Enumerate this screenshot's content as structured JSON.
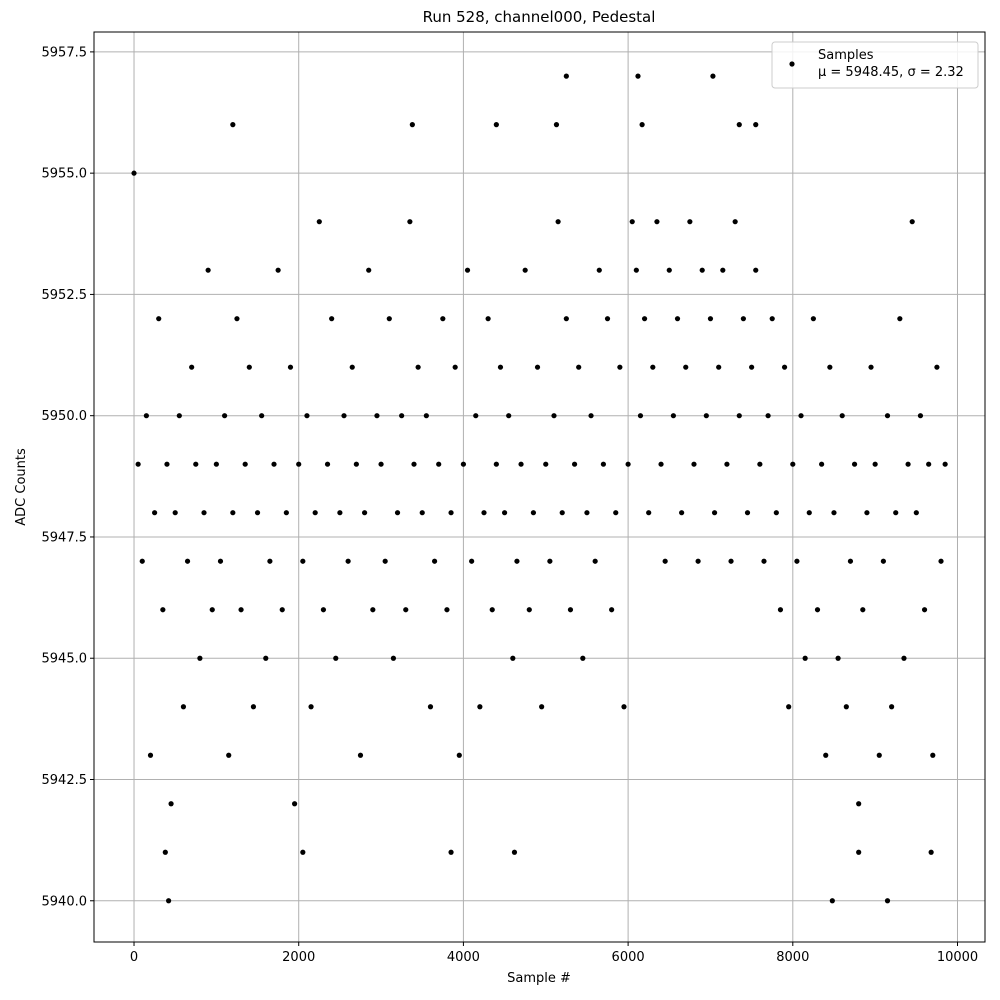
{
  "chart_data": {
    "type": "scatter",
    "title": "Run 528, channel000, Pedestal",
    "x_label": "Sample #",
    "y_label": "ADC Counts",
    "xlim": [
      -486,
      10334
    ],
    "ylim": [
      5939.15,
      5957.91
    ],
    "xticks": [
      0,
      2000,
      4000,
      6000,
      8000,
      10000
    ],
    "yticks": [
      {
        "value": 5940,
        "label": "5940.0"
      },
      5942.5,
      {
        "value": 5945,
        "label": "5945.0"
      },
      5947.5,
      {
        "value": 5950,
        "label": "5950.0"
      },
      5952.5,
      {
        "value": 5955,
        "label": "5955.0"
      },
      5957.5
    ],
    "grid": true,
    "legend": "upper right",
    "annotation": "μ = 5948.45, σ = 2.32",
    "series": [
      {
        "name": "Samples",
        "color": "#000000",
        "x": [
          0,
          50,
          100,
          150,
          200,
          250,
          300,
          350,
          400,
          450,
          500,
          550,
          600,
          650,
          700,
          750,
          800,
          850,
          900,
          950,
          1000,
          1050,
          1100,
          1150,
          1200,
          1250,
          1300,
          1350,
          1400,
          1450,
          1500,
          1550,
          1600,
          1650,
          1700,
          1750,
          1800,
          1850,
          1900,
          1950,
          2000,
          2050,
          2100,
          2150,
          2200,
          2250,
          2300,
          2350,
          2400,
          2450,
          2500,
          2550,
          2600,
          2650,
          2700,
          2750,
          2800,
          2850,
          2900,
          2950,
          3000,
          3050,
          3100,
          3150,
          3200,
          3250,
          3300,
          3350,
          3400,
          3450,
          3500,
          3550,
          3600,
          3650,
          3700,
          3750,
          3800,
          3850,
          3900,
          3950,
          4000,
          4050,
          4100,
          4150,
          4200,
          4250,
          4300,
          4350,
          4400,
          4450,
          4500,
          4550,
          4600,
          4650,
          4700,
          4750,
          4800,
          4850,
          4900,
          4950,
          5000,
          5050,
          5100,
          5150,
          5200,
          5250,
          5300,
          5350,
          5400,
          5450,
          5500,
          5550,
          5600,
          5650,
          5700,
          5750,
          5800,
          5850,
          5900,
          5950,
          6000,
          6050,
          6100,
          6150,
          6200,
          6250,
          6300,
          6350,
          6400,
          6450,
          6500,
          6550,
          6600,
          6650,
          6700,
          6750,
          6800,
          6850,
          6900,
          6950,
          7000,
          7050,
          7100,
          7150,
          7200,
          7250,
          7300,
          7350,
          7400,
          7450,
          7500,
          7550,
          7600,
          7650,
          7700,
          7750,
          7800,
          7850,
          7900,
          7950,
          8000,
          8050,
          8100,
          8150,
          8200,
          8250,
          8300,
          8350,
          8400,
          8450,
          8500,
          8550,
          8600,
          8650,
          8700,
          8750,
          8800,
          8850,
          8900,
          8950,
          9000,
          9050,
          9100,
          9150,
          9200,
          9250,
          9300,
          9350,
          9400,
          9450,
          9500,
          9550,
          9600,
          9650,
          9700,
          9750,
          9800,
          9850,
          1200,
          3380,
          4400,
          5130,
          5250,
          6120,
          7030,
          6170,
          7350,
          7550,
          420,
          8480,
          9150,
          380,
          2050,
          3850,
          4620,
          8800,
          9680
        ],
        "values": [
          5955,
          5949,
          5947,
          5950,
          5943,
          5948,
          5952,
          5946,
          5949,
          5942,
          5948,
          5950,
          5944,
          5947,
          5951,
          5949,
          5945,
          5948,
          5953,
          5946,
          5949,
          5947,
          5950,
          5943,
          5948,
          5952,
          5946,
          5949,
          5951,
          5944,
          5948,
          5950,
          5945,
          5947,
          5949,
          5953,
          5946,
          5948,
          5951,
          5942,
          5949,
          5947,
          5950,
          5944,
          5948,
          5954,
          5946,
          5949,
          5952,
          5945,
          5948,
          5950,
          5947,
          5951,
          5949,
          5943,
          5948,
          5953,
          5946,
          5950,
          5949,
          5947,
          5952,
          5945,
          5948,
          5950,
          5946,
          5954,
          5949,
          5951,
          5948,
          5950,
          5944,
          5947,
          5949,
          5952,
          5946,
          5948,
          5951,
          5943,
          5949,
          5953,
          5947,
          5950,
          5944,
          5948,
          5952,
          5946,
          5949,
          5951,
          5948,
          5950,
          5945,
          5947,
          5949,
          5953,
          5946,
          5948,
          5951,
          5944,
          5949,
          5947,
          5950,
          5954,
          5948,
          5952,
          5946,
          5949,
          5951,
          5945,
          5948,
          5950,
          5947,
          5953,
          5949,
          5952,
          5946,
          5948,
          5951,
          5944,
          5949,
          5954,
          5953,
          5950,
          5952,
          5948,
          5951,
          5954,
          5949,
          5947,
          5953,
          5950,
          5952,
          5948,
          5951,
          5954,
          5949,
          5947,
          5953,
          5950,
          5952,
          5948,
          5951,
          5953,
          5949,
          5947,
          5954,
          5950,
          5952,
          5948,
          5951,
          5953,
          5949,
          5947,
          5950,
          5952,
          5948,
          5946,
          5951,
          5944,
          5949,
          5947,
          5950,
          5945,
          5948,
          5952,
          5946,
          5949,
          5943,
          5951,
          5948,
          5945,
          5950,
          5944,
          5947,
          5949,
          5942,
          5946,
          5948,
          5951,
          5949,
          5943,
          5947,
          5950,
          5944,
          5948,
          5952,
          5945,
          5949,
          5954,
          5948,
          5950,
          5946,
          5949,
          5943,
          5951,
          5947,
          5949,
          5956,
          5956,
          5956,
          5956,
          5957,
          5957,
          5957,
          5956,
          5956,
          5956,
          5940,
          5940,
          5940,
          5941,
          5941,
          5941,
          5941,
          5941,
          5941
        ]
      }
    ]
  }
}
